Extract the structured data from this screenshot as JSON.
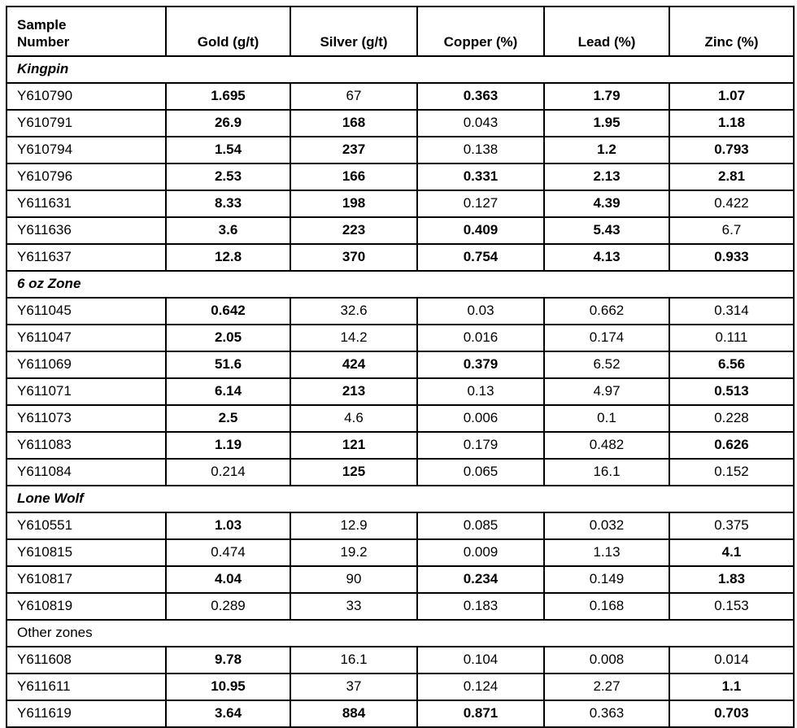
{
  "table": {
    "columns": [
      "Sample\nNumber",
      "Gold (g/t)",
      "Silver (g/t)",
      "Copper (%)",
      "Lead (%)",
      "Zinc (%)"
    ],
    "sections": [
      {
        "name": "Kingpin",
        "emphasis": true,
        "rows": [
          {
            "sample": "Y610790",
            "values": [
              "1.695",
              "67",
              "0.363",
              "1.79",
              "1.07"
            ],
            "bold": [
              true,
              false,
              true,
              true,
              true
            ]
          },
          {
            "sample": "Y610791",
            "values": [
              "26.9",
              "168",
              "0.043",
              "1.95",
              "1.18"
            ],
            "bold": [
              true,
              true,
              false,
              true,
              true
            ]
          },
          {
            "sample": "Y610794",
            "values": [
              "1.54",
              "237",
              "0.138",
              "1.2",
              "0.793"
            ],
            "bold": [
              true,
              true,
              false,
              true,
              true
            ]
          },
          {
            "sample": "Y610796",
            "values": [
              "2.53",
              "166",
              "0.331",
              "2.13",
              "2.81"
            ],
            "bold": [
              true,
              true,
              true,
              true,
              true
            ]
          },
          {
            "sample": "Y611631",
            "values": [
              "8.33",
              "198",
              "0.127",
              "4.39",
              "0.422"
            ],
            "bold": [
              true,
              true,
              false,
              true,
              false
            ]
          },
          {
            "sample": "Y611636",
            "values": [
              "3.6",
              "223",
              "0.409",
              "5.43",
              "6.7"
            ],
            "bold": [
              true,
              true,
              true,
              true,
              false
            ]
          },
          {
            "sample": "Y611637",
            "values": [
              "12.8",
              "370",
              "0.754",
              "4.13",
              "0.933"
            ],
            "bold": [
              true,
              true,
              true,
              true,
              true
            ]
          }
        ]
      },
      {
        "name": "6 oz Zone",
        "emphasis": true,
        "rows": [
          {
            "sample": "Y611045",
            "values": [
              "0.642",
              "32.6",
              "0.03",
              "0.662",
              "0.314"
            ],
            "bold": [
              true,
              false,
              false,
              false,
              false
            ]
          },
          {
            "sample": "Y611047",
            "values": [
              "2.05",
              "14.2",
              "0.016",
              "0.174",
              "0.111"
            ],
            "bold": [
              true,
              false,
              false,
              false,
              false
            ]
          },
          {
            "sample": "Y611069",
            "values": [
              "51.6",
              "424",
              "0.379",
              "6.52",
              "6.56"
            ],
            "bold": [
              true,
              true,
              true,
              false,
              true
            ]
          },
          {
            "sample": "Y611071",
            "values": [
              "6.14",
              "213",
              "0.13",
              "4.97",
              "0.513"
            ],
            "bold": [
              true,
              true,
              false,
              false,
              true
            ]
          },
          {
            "sample": "Y611073",
            "values": [
              "2.5",
              "4.6",
              "0.006",
              "0.1",
              "0.228"
            ],
            "bold": [
              true,
              false,
              false,
              false,
              false
            ]
          },
          {
            "sample": "Y611083",
            "values": [
              "1.19",
              "121",
              "0.179",
              "0.482",
              "0.626"
            ],
            "bold": [
              true,
              true,
              false,
              false,
              true
            ]
          },
          {
            "sample": "Y611084",
            "values": [
              "0.214",
              "125",
              "0.065",
              "16.1",
              "0.152"
            ],
            "bold": [
              false,
              true,
              false,
              false,
              false
            ]
          }
        ]
      },
      {
        "name": "Lone Wolf",
        "emphasis": true,
        "rows": [
          {
            "sample": "Y610551",
            "values": [
              "1.03",
              "12.9",
              "0.085",
              "0.032",
              "0.375"
            ],
            "bold": [
              true,
              false,
              false,
              false,
              false
            ]
          },
          {
            "sample": "Y610815",
            "values": [
              "0.474",
              "19.2",
              "0.009",
              "1.13",
              "4.1"
            ],
            "bold": [
              false,
              false,
              false,
              false,
              true
            ]
          },
          {
            "sample": "Y610817",
            "values": [
              "4.04",
              "90",
              "0.234",
              "0.149",
              "1.83"
            ],
            "bold": [
              true,
              false,
              true,
              false,
              true
            ]
          },
          {
            "sample": "Y610819",
            "values": [
              "0.289",
              "33",
              "0.183",
              "0.168",
              "0.153"
            ],
            "bold": [
              false,
              false,
              false,
              false,
              false
            ]
          }
        ]
      },
      {
        "name": "Other zones",
        "emphasis": false,
        "rows": [
          {
            "sample": "Y611608",
            "values": [
              "9.78",
              "16.1",
              "0.104",
              "0.008",
              "0.014"
            ],
            "bold": [
              true,
              false,
              false,
              false,
              false
            ]
          },
          {
            "sample": "Y611611",
            "values": [
              "10.95",
              "37",
              "0.124",
              "2.27",
              "1.1"
            ],
            "bold": [
              true,
              false,
              false,
              false,
              true
            ]
          },
          {
            "sample": "Y611619",
            "values": [
              "3.64",
              "884",
              "0.871",
              "0.363",
              "0.703"
            ],
            "bold": [
              true,
              true,
              true,
              false,
              true
            ]
          }
        ]
      }
    ]
  }
}
